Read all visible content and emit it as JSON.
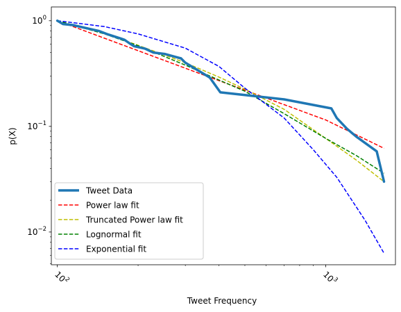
{
  "chart_data": {
    "type": "line",
    "xlabel": "Tweet Frequency",
    "ylabel": "p(X)",
    "xscale": "log",
    "yscale": "log",
    "xlim": [
      95,
      1820
    ],
    "ylim": [
      0.0049,
      1.35
    ],
    "grid": false,
    "legend_position": "lower-left",
    "x_ticks": [
      {
        "value": 100,
        "base": "10",
        "exp": "2"
      },
      {
        "value": 1000,
        "base": "10",
        "exp": "3"
      }
    ],
    "y_ticks": [
      {
        "value": 1,
        "base": "10",
        "exp": "0"
      },
      {
        "value": 0.1,
        "base": "10",
        "exp": "−1"
      },
      {
        "value": 0.01,
        "base": "10",
        "exp": "−2"
      }
    ],
    "series": [
      {
        "name": "Tweet Data",
        "color": "#1f77b4",
        "style": "solid",
        "width": 3.5,
        "points": [
          [
            100,
            1.0
          ],
          [
            105,
            0.93
          ],
          [
            114,
            0.91
          ],
          [
            131,
            0.84
          ],
          [
            143,
            0.8
          ],
          [
            155,
            0.74
          ],
          [
            172,
            0.68
          ],
          [
            178,
            0.66
          ],
          [
            186,
            0.61
          ],
          [
            193,
            0.575
          ],
          [
            212,
            0.545
          ],
          [
            228,
            0.5
          ],
          [
            251,
            0.485
          ],
          [
            289,
            0.44
          ],
          [
            300,
            0.4
          ],
          [
            370,
            0.29
          ],
          [
            405,
            0.21
          ],
          [
            500,
            0.198
          ],
          [
            700,
            0.18
          ],
          [
            1050,
            0.148
          ],
          [
            1100,
            0.12
          ],
          [
            1200,
            0.095
          ],
          [
            1300,
            0.08
          ],
          [
            1550,
            0.058
          ],
          [
            1650,
            0.03
          ]
        ]
      },
      {
        "name": "Power law fit",
        "color": "#ff0000",
        "style": "dashed",
        "width": 1.5,
        "points": [
          [
            100,
            1.0
          ],
          [
            300,
            0.355
          ],
          [
            1000,
            0.115
          ],
          [
            1650,
            0.062
          ]
        ]
      },
      {
        "name": "Truncated Power law fit",
        "color": "#bfbf00",
        "style": "dashed",
        "width": 1.5,
        "points": [
          [
            100,
            1.0
          ],
          [
            150,
            0.76
          ],
          [
            200,
            0.585
          ],
          [
            300,
            0.4
          ],
          [
            400,
            0.293
          ],
          [
            500,
            0.225
          ],
          [
            700,
            0.145
          ],
          [
            1000,
            0.077
          ],
          [
            1300,
            0.048
          ],
          [
            1650,
            0.03
          ]
        ]
      },
      {
        "name": "Lognormal fit",
        "color": "#008000",
        "style": "dashed",
        "width": 1.5,
        "points": [
          [
            100,
            1.0
          ],
          [
            150,
            0.75
          ],
          [
            200,
            0.58
          ],
          [
            300,
            0.38
          ],
          [
            400,
            0.275
          ],
          [
            500,
            0.215
          ],
          [
            700,
            0.132
          ],
          [
            1000,
            0.077
          ],
          [
            1300,
            0.053
          ],
          [
            1650,
            0.036
          ]
        ]
      },
      {
        "name": "Exponential fit",
        "color": "#0000ff",
        "style": "dashed",
        "width": 1.5,
        "points": [
          [
            100,
            1.0
          ],
          [
            150,
            0.88
          ],
          [
            200,
            0.75
          ],
          [
            300,
            0.55
          ],
          [
            400,
            0.37
          ],
          [
            500,
            0.23
          ],
          [
            700,
            0.12
          ],
          [
            900,
            0.06
          ],
          [
            1100,
            0.033
          ],
          [
            1400,
            0.013
          ],
          [
            1650,
            0.0063
          ]
        ]
      }
    ]
  }
}
